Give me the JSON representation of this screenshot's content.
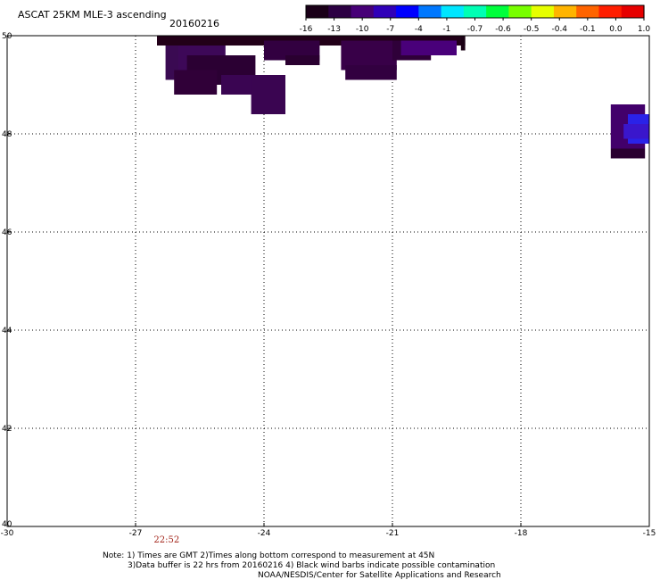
{
  "header": {
    "title": "ASCAT 25KM MLE-3 ascending",
    "date": "20160216"
  },
  "colorbar": {
    "labels": [
      "-16",
      "-13",
      "-10",
      "-7",
      "-4",
      "-1",
      "-0.7",
      "-0.6",
      "-0.5",
      "-0.4",
      "-0.1",
      "0.0",
      "1.0"
    ],
    "colors": [
      "#1a0018",
      "#2c0043",
      "#470077",
      "#3000b8",
      "#0000ff",
      "#0078ff",
      "#00e6ff",
      "#00ffb4",
      "#00ff3c",
      "#78ff00",
      "#e6ff00",
      "#ffb400",
      "#ff6400",
      "#ff1e00",
      "#e60000"
    ]
  },
  "axes": {
    "x_ticks": [
      -30,
      -27,
      -24,
      -21,
      -18,
      -15
    ],
    "x_tick_labels": [
      "-30",
      "-27",
      "-24",
      "-21",
      "-18",
      "-15"
    ],
    "y_ticks": [
      40,
      42,
      44,
      46,
      48,
      50
    ],
    "y_tick_labels": [
      "40",
      "42",
      "44",
      "46",
      "48",
      "50"
    ],
    "lon_range": [
      -30,
      -15
    ],
    "lat_range": [
      40,
      50
    ],
    "grid": true
  },
  "time_marker": {
    "text": "22:52",
    "lon": -26.2
  },
  "data_cells": [
    {
      "lon": [
        -26.5,
        -19.3
      ],
      "lat": [
        49.8,
        50.0
      ],
      "color": "#220018"
    },
    {
      "lon": [
        -26.3,
        -25.7
      ],
      "lat": [
        49.1,
        49.8
      ],
      "color": "#3a0a52"
    },
    {
      "lon": [
        -26.0,
        -24.9
      ],
      "lat": [
        49.1,
        49.8
      ],
      "color": "#3d0858"
    },
    {
      "lon": [
        -25.8,
        -24.2
      ],
      "lat": [
        49.0,
        49.6
      ],
      "color": "#2b0033"
    },
    {
      "lon": [
        -26.1,
        -25.1
      ],
      "lat": [
        48.8,
        49.3
      ],
      "color": "#300038"
    },
    {
      "lon": [
        -25.0,
        -24.1
      ],
      "lat": [
        48.8,
        49.2
      ],
      "color": "#3a0552"
    },
    {
      "lon": [
        -24.3,
        -23.5
      ],
      "lat": [
        48.4,
        49.2
      ],
      "color": "#3a0551"
    },
    {
      "lon": [
        -24.0,
        -22.7
      ],
      "lat": [
        49.5,
        49.9
      ],
      "color": "#320040"
    },
    {
      "lon": [
        -23.5,
        -22.7
      ],
      "lat": [
        49.4,
        49.6
      ],
      "color": "#2a0030"
    },
    {
      "lon": [
        -22.2,
        -20.9
      ],
      "lat": [
        49.3,
        49.9
      ],
      "color": "#380048"
    },
    {
      "lon": [
        -22.1,
        -20.9
      ],
      "lat": [
        49.1,
        49.4
      ],
      "color": "#320040"
    },
    {
      "lon": [
        -21.0,
        -20.1
      ],
      "lat": [
        49.5,
        49.9
      ],
      "color": "#2f0039"
    },
    {
      "lon": [
        -20.8,
        -19.5
      ],
      "lat": [
        49.6,
        49.9
      ],
      "color": "#49007a"
    },
    {
      "lon": [
        -19.4,
        -19.3
      ],
      "lat": [
        49.7,
        50.0
      ],
      "color": "#1a0014"
    },
    {
      "lon": [
        -15.9,
        -15.1
      ],
      "lat": [
        47.7,
        48.6
      ],
      "color": "#42006b"
    },
    {
      "lon": [
        -15.5,
        -15.0
      ],
      "lat": [
        47.8,
        48.4
      ],
      "color": "#2a22e8"
    },
    {
      "lon": [
        -15.6,
        -15.0
      ],
      "lat": [
        47.9,
        48.2
      ],
      "color": "#3a16cc"
    },
    {
      "lon": [
        -15.9,
        -15.1
      ],
      "lat": [
        47.5,
        47.7
      ],
      "color": "#2a0030"
    }
  ],
  "footer": {
    "note_line1": "Note: 1) Times are GMT 2)Times along bottom correspond to measurement at 45N",
    "note_line2": "3)Data buffer is 22 hrs from 20160216 4) Black wind barbs indicate possible contamination",
    "credit": "NOAA/NESDIS/Center for Satellite Applications and Research"
  }
}
